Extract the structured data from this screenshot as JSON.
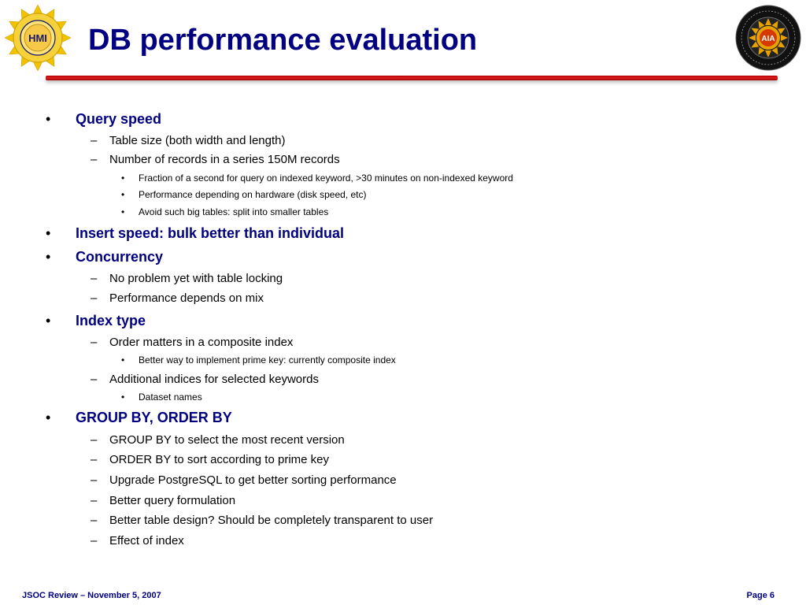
{
  "slide": {
    "title": "DB performance evaluation",
    "bullets": [
      {
        "level": 1,
        "text": "Query speed"
      },
      {
        "level": 2,
        "text": "Table size (both width and length)"
      },
      {
        "level": 2,
        "text": "Number of records in a series 150M records"
      },
      {
        "level": 3,
        "text": "Fraction of a second for query on indexed keyword, >30 minutes on non-indexed keyword"
      },
      {
        "level": 3,
        "text": "Performance depending on hardware (disk speed, etc)"
      },
      {
        "level": 3,
        "text": "Avoid such big tables: split into smaller tables"
      },
      {
        "level": 1,
        "text": "Insert speed: bulk better than individual"
      },
      {
        "level": 1,
        "text": "Concurrency"
      },
      {
        "level": 2,
        "text": "No problem yet with table locking"
      },
      {
        "level": 2,
        "text": "Performance depends on mix"
      },
      {
        "level": 1,
        "text": "Index type"
      },
      {
        "level": 2,
        "text": "Order matters in a composite index"
      },
      {
        "level": 3,
        "text": "Better way to implement prime key: currently composite index"
      },
      {
        "level": 2,
        "text": "Additional indices for selected keywords"
      },
      {
        "level": 3,
        "text": "Dataset names"
      },
      {
        "level": 1,
        "text": "GROUP BY, ORDER BY"
      },
      {
        "level": 2,
        "text": "GROUP BY to select the most recent version"
      },
      {
        "level": 2,
        "text": "ORDER BY to sort according to prime key"
      },
      {
        "level": 2,
        "text": "Upgrade PostgreSQL to get better sorting performance"
      },
      {
        "level": 2,
        "text": "Better query formulation"
      },
      {
        "level": 2,
        "text": "Better table design? Should be completely transparent to user"
      },
      {
        "level": 2,
        "text": "Effect of index"
      }
    ],
    "bullet_marks": {
      "level1": "•",
      "level2": "–",
      "level3": "•"
    }
  },
  "logos": {
    "left": {
      "icon": "hmi-logo-icon",
      "text": "HMI",
      "colors": {
        "ring": "#f2c200",
        "center": "#ffe27a",
        "text": "#1a1a6e"
      }
    },
    "right": {
      "icon": "aia-logo-icon",
      "text": "AIA",
      "colors": {
        "ring": "#111111",
        "sun": "#e8a200",
        "text": "#ffffff"
      }
    }
  },
  "footer": {
    "left": "JSOC Review – November 5, 2007",
    "right": "Page 6"
  },
  "colors": {
    "title": "#000080",
    "rule": "#cc0000",
    "footer": "#000080"
  }
}
